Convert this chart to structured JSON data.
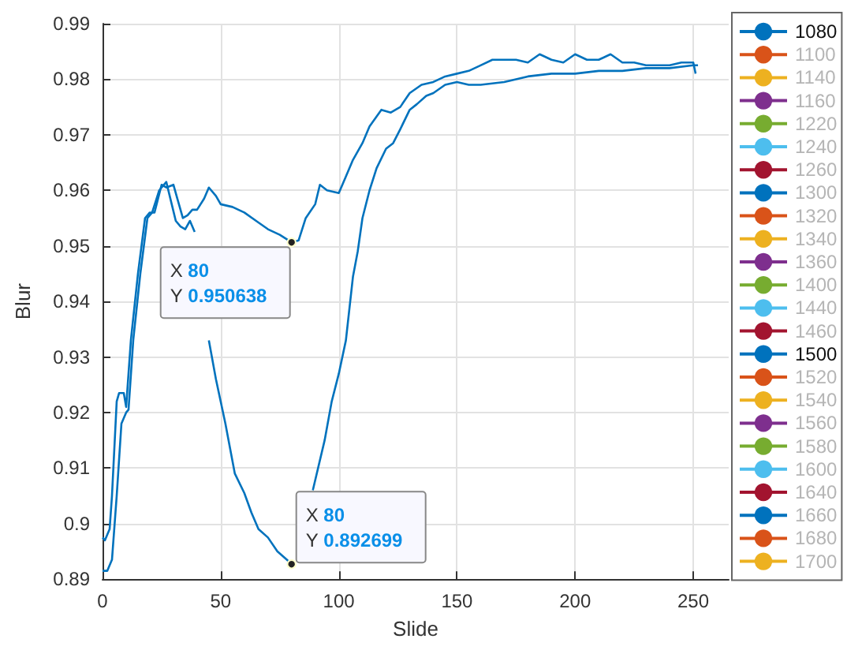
{
  "chart_data": {
    "type": "line",
    "xlabel": "Slide",
    "ylabel": "Blur",
    "xlim": [
      0,
      265
    ],
    "xticks": [
      0,
      50,
      100,
      150,
      200,
      250
    ],
    "ylim": [
      0.89,
      0.99
    ],
    "yticks": [
      0.89,
      0.9,
      0.91,
      0.92,
      0.93,
      0.94,
      0.95,
      0.96,
      0.97,
      0.98,
      0.99
    ],
    "grid": true,
    "legend": "right",
    "line_style": "solid",
    "marker": "none",
    "series": [
      {
        "name": "1080",
        "color": "#0072bd",
        "x": [
          0,
          1,
          3,
          4,
          6,
          7,
          9,
          10,
          12,
          15,
          18,
          20,
          22,
          25,
          27,
          30,
          32,
          34,
          36,
          38,
          40,
          43,
          45,
          48,
          50,
          55,
          60,
          65,
          70,
          75,
          80,
          83,
          86,
          90,
          92,
          95,
          100,
          103,
          106,
          110,
          113,
          118,
          122,
          126,
          130,
          135,
          140,
          145,
          150,
          155,
          160,
          165,
          170,
          175,
          180,
          185,
          190,
          195,
          200,
          205,
          210,
          215,
          220,
          225,
          230,
          235,
          240,
          245,
          250,
          251
        ],
        "values": [
          0.8975,
          0.897,
          0.899,
          0.905,
          0.922,
          0.9235,
          0.9235,
          0.921,
          0.933,
          0.945,
          0.955,
          0.956,
          0.956,
          0.961,
          0.9605,
          0.961,
          0.958,
          0.955,
          0.9555,
          0.9565,
          0.9565,
          0.9585,
          0.9605,
          0.959,
          0.9575,
          0.957,
          0.956,
          0.9545,
          0.953,
          0.952,
          0.950638,
          0.951,
          0.955,
          0.9575,
          0.961,
          0.96,
          0.9595,
          0.9625,
          0.9655,
          0.9685,
          0.9715,
          0.9745,
          0.974,
          0.975,
          0.9775,
          0.979,
          0.9795,
          0.9805,
          0.981,
          0.9815,
          0.9825,
          0.9835,
          0.9835,
          0.9835,
          0.983,
          0.9845,
          0.9835,
          0.983,
          0.9845,
          0.9835,
          0.9835,
          0.9845,
          0.983,
          0.983,
          0.9825,
          0.9825,
          0.9825,
          0.983,
          0.983,
          0.981
        ]
      },
      {
        "name": "1100",
        "color": "#d95319"
      },
      {
        "name": "1140",
        "color": "#edb120"
      },
      {
        "name": "1160",
        "color": "#7e2f8e"
      },
      {
        "name": "1220",
        "color": "#77ac30"
      },
      {
        "name": "1240",
        "color": "#4dbeee"
      },
      {
        "name": "1260",
        "color": "#a2142f"
      },
      {
        "name": "1300",
        "color": "#0072bd"
      },
      {
        "name": "1320",
        "color": "#d95319"
      },
      {
        "name": "1340",
        "color": "#edb120"
      },
      {
        "name": "1360",
        "color": "#7e2f8e"
      },
      {
        "name": "1400",
        "color": "#77ac30"
      },
      {
        "name": "1440",
        "color": "#4dbeee"
      },
      {
        "name": "1460",
        "color": "#a2142f"
      },
      {
        "name": "1500",
        "color": "#0072bd",
        "x": [
          0,
          2,
          4,
          6,
          8,
          10,
          11,
          13,
          16,
          19,
          21,
          24,
          27,
          29,
          31,
          33,
          35,
          37,
          39,
          40,
          42,
          45,
          48,
          52,
          56,
          60,
          63,
          66,
          70,
          74,
          78,
          80,
          83,
          86,
          89,
          94,
          97,
          100,
          103,
          106,
          108,
          110,
          113,
          116,
          120,
          123,
          126,
          130,
          133,
          137,
          140,
          145,
          150,
          155,
          160,
          170,
          180,
          190,
          200,
          210,
          220,
          230,
          240,
          250,
          252
        ],
        "values": [
          0.8915,
          0.8915,
          0.8935,
          0.905,
          0.918,
          0.92,
          0.9205,
          0.933,
          0.945,
          0.955,
          0.956,
          0.96,
          0.9615,
          0.958,
          0.9545,
          0.9535,
          0.953,
          0.9545,
          0.9525,
          null,
          null,
          0.933,
          0.926,
          0.918,
          0.909,
          0.9055,
          0.902,
          0.899,
          0.8975,
          0.895,
          0.8935,
          0.892699,
          null,
          null,
          0.906,
          0.915,
          0.922,
          0.927,
          0.933,
          0.9445,
          0.949,
          0.955,
          0.96,
          0.964,
          0.9675,
          0.9685,
          0.971,
          0.9745,
          0.9755,
          0.977,
          0.9775,
          0.979,
          0.9795,
          0.979,
          0.979,
          0.9795,
          0.9805,
          0.981,
          0.981,
          0.9815,
          0.9815,
          0.982,
          0.982,
          0.9825,
          0.9825
        ]
      },
      {
        "name": "1520",
        "color": "#d95319"
      },
      {
        "name": "1540",
        "color": "#edb120"
      },
      {
        "name": "1560",
        "color": "#7e2f8e"
      },
      {
        "name": "1580",
        "color": "#77ac30"
      },
      {
        "name": "1600",
        "color": "#4dbeee"
      },
      {
        "name": "1640",
        "color": "#a2142f"
      },
      {
        "name": "1660",
        "color": "#0072bd"
      },
      {
        "name": "1680",
        "color": "#d95319"
      },
      {
        "name": "1700",
        "color": "#edb120"
      }
    ],
    "annotations": [
      {
        "text": "X 80\nY 0.950638",
        "x": 80,
        "y": 0.950638
      },
      {
        "text": "X 80\nY 0.892699",
        "x": 80,
        "y": 0.892699
      }
    ]
  }
}
